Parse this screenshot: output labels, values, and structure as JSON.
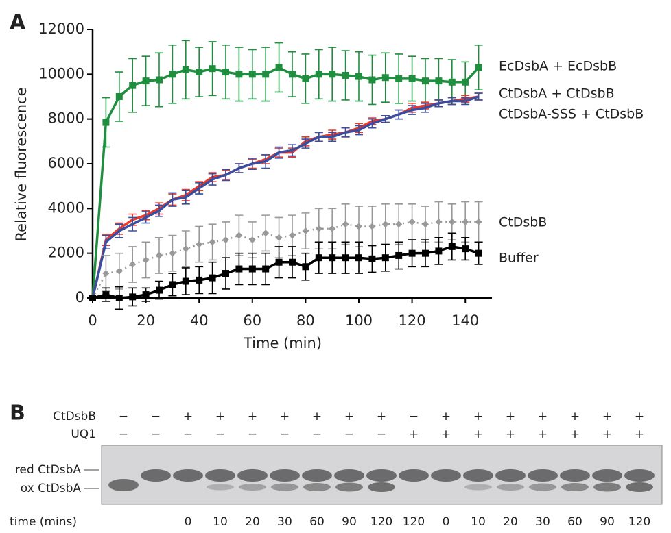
{
  "panel_labels": [
    "A",
    "B"
  ],
  "chart_data": {
    "type": "line",
    "x_label": "Time (min)",
    "y_label": "Relative fluorescence",
    "x": [
      0,
      5,
      10,
      15,
      20,
      25,
      30,
      35,
      40,
      45,
      50,
      55,
      60,
      65,
      70,
      75,
      80,
      85,
      90,
      95,
      100,
      105,
      110,
      115,
      120,
      125,
      130,
      135,
      140,
      145
    ],
    "xlim": [
      0,
      150
    ],
    "xticks": [
      0,
      20,
      40,
      60,
      80,
      100,
      120,
      140
    ],
    "ylim": [
      0,
      12000
    ],
    "yticks": [
      0,
      2000,
      4000,
      6000,
      8000,
      10000,
      12000
    ],
    "series": [
      {
        "name": "EcDsbA + EcDsbB",
        "color": "#1f8f3f",
        "marker": "square",
        "dash": false,
        "values": [
          0,
          7850,
          9000,
          9500,
          9700,
          9750,
          10000,
          10200,
          10100,
          10250,
          10100,
          10000,
          10000,
          10000,
          10300,
          10000,
          9800,
          10000,
          10000,
          9950,
          9900,
          9750,
          9850,
          9800,
          9800,
          9700,
          9700,
          9650,
          9650,
          10300
        ],
        "errors": [
          0,
          1100,
          1100,
          1200,
          1100,
          1200,
          1300,
          1300,
          1100,
          1200,
          1200,
          1200,
          1100,
          1200,
          1100,
          1000,
          1100,
          1100,
          1200,
          1100,
          1100,
          1100,
          1100,
          1100,
          1000,
          1000,
          1000,
          1000,
          900,
          1000
        ]
      },
      {
        "name": "CtDsbA + CtDsbB",
        "color": "#e8392a",
        "marker": "none",
        "dash": false,
        "values": [
          0,
          2600,
          3100,
          3500,
          3700,
          4000,
          4400,
          4600,
          5000,
          5400,
          5500,
          5800,
          6000,
          6200,
          6500,
          6500,
          7000,
          7200,
          7300,
          7400,
          7600,
          7900,
          8000,
          8200,
          8500,
          8600,
          8700,
          8800,
          8900,
          9000
        ],
        "errors": [
          0,
          250,
          250,
          250,
          200,
          250,
          250,
          250,
          200,
          200,
          200,
          200,
          200,
          200,
          200,
          200,
          200,
          200,
          200,
          200,
          200,
          150,
          150,
          200,
          200,
          150,
          150,
          150,
          150,
          150
        ]
      },
      {
        "name": "CtDsbA-SSS + CtDsbB",
        "color": "#3a4ea0",
        "marker": "none",
        "dash": false,
        "values": [
          0,
          2500,
          3000,
          3300,
          3600,
          3900,
          4400,
          4500,
          4900,
          5300,
          5500,
          5800,
          6000,
          6100,
          6500,
          6600,
          6900,
          7200,
          7200,
          7400,
          7500,
          7800,
          8000,
          8200,
          8400,
          8500,
          8700,
          8800,
          8800,
          9000
        ],
        "errors": [
          0,
          300,
          300,
          300,
          250,
          250,
          300,
          300,
          250,
          250,
          250,
          200,
          250,
          300,
          250,
          250,
          200,
          200,
          200,
          200,
          200,
          200,
          150,
          200,
          200,
          200,
          150,
          150,
          150,
          150
        ]
      },
      {
        "name": "CtDsbB",
        "color": "#999999",
        "marker": "diamond",
        "dash": true,
        "values": [
          0,
          1100,
          1200,
          1500,
          1700,
          1900,
          2000,
          2200,
          2400,
          2500,
          2600,
          2800,
          2600,
          2900,
          2700,
          2800,
          3000,
          3100,
          3100,
          3300,
          3200,
          3200,
          3300,
          3300,
          3400,
          3300,
          3400,
          3400,
          3400,
          3400
        ],
        "errors": [
          0,
          800,
          800,
          800,
          800,
          800,
          800,
          800,
          800,
          800,
          800,
          900,
          800,
          800,
          900,
          900,
          800,
          900,
          900,
          900,
          900,
          900,
          900,
          900,
          800,
          800,
          900,
          800,
          900,
          900
        ]
      },
      {
        "name": "Buffer",
        "color": "#000000",
        "marker": "square",
        "dash": false,
        "values": [
          0,
          150,
          0,
          50,
          150,
          350,
          600,
          750,
          800,
          900,
          1100,
          1300,
          1300,
          1300,
          1600,
          1600,
          1400,
          1800,
          1800,
          1800,
          1800,
          1750,
          1800,
          1900,
          2000,
          2000,
          2100,
          2300,
          2200,
          2000
        ],
        "errors": [
          0,
          300,
          500,
          400,
          300,
          400,
          500,
          600,
          600,
          700,
          700,
          700,
          700,
          700,
          700,
          700,
          600,
          700,
          700,
          700,
          700,
          600,
          600,
          600,
          600,
          600,
          600,
          600,
          500,
          500
        ]
      }
    ]
  },
  "gel": {
    "row_labels": [
      "CtDsbB",
      "UQ1"
    ],
    "ctdsbb": [
      "−",
      "−",
      "+",
      "+",
      "+",
      "+",
      "+",
      "+",
      "+",
      "−",
      "+",
      "+",
      "+",
      "+",
      "+",
      "+",
      "+"
    ],
    "uq1": [
      "−",
      "−",
      "−",
      "−",
      "−",
      "−",
      "−",
      "−",
      "−",
      "+",
      "+",
      "+",
      "+",
      "+",
      "+",
      "+",
      "+"
    ],
    "band_labels": [
      "red CtDsbA",
      "ox CtDsbA"
    ],
    "time_label": "time (mins)",
    "times": [
      null,
      null,
      "0",
      "10",
      "20",
      "30",
      "60",
      "90",
      "120",
      "120",
      "0",
      "10",
      "20",
      "30",
      "60",
      "90",
      "120"
    ]
  }
}
